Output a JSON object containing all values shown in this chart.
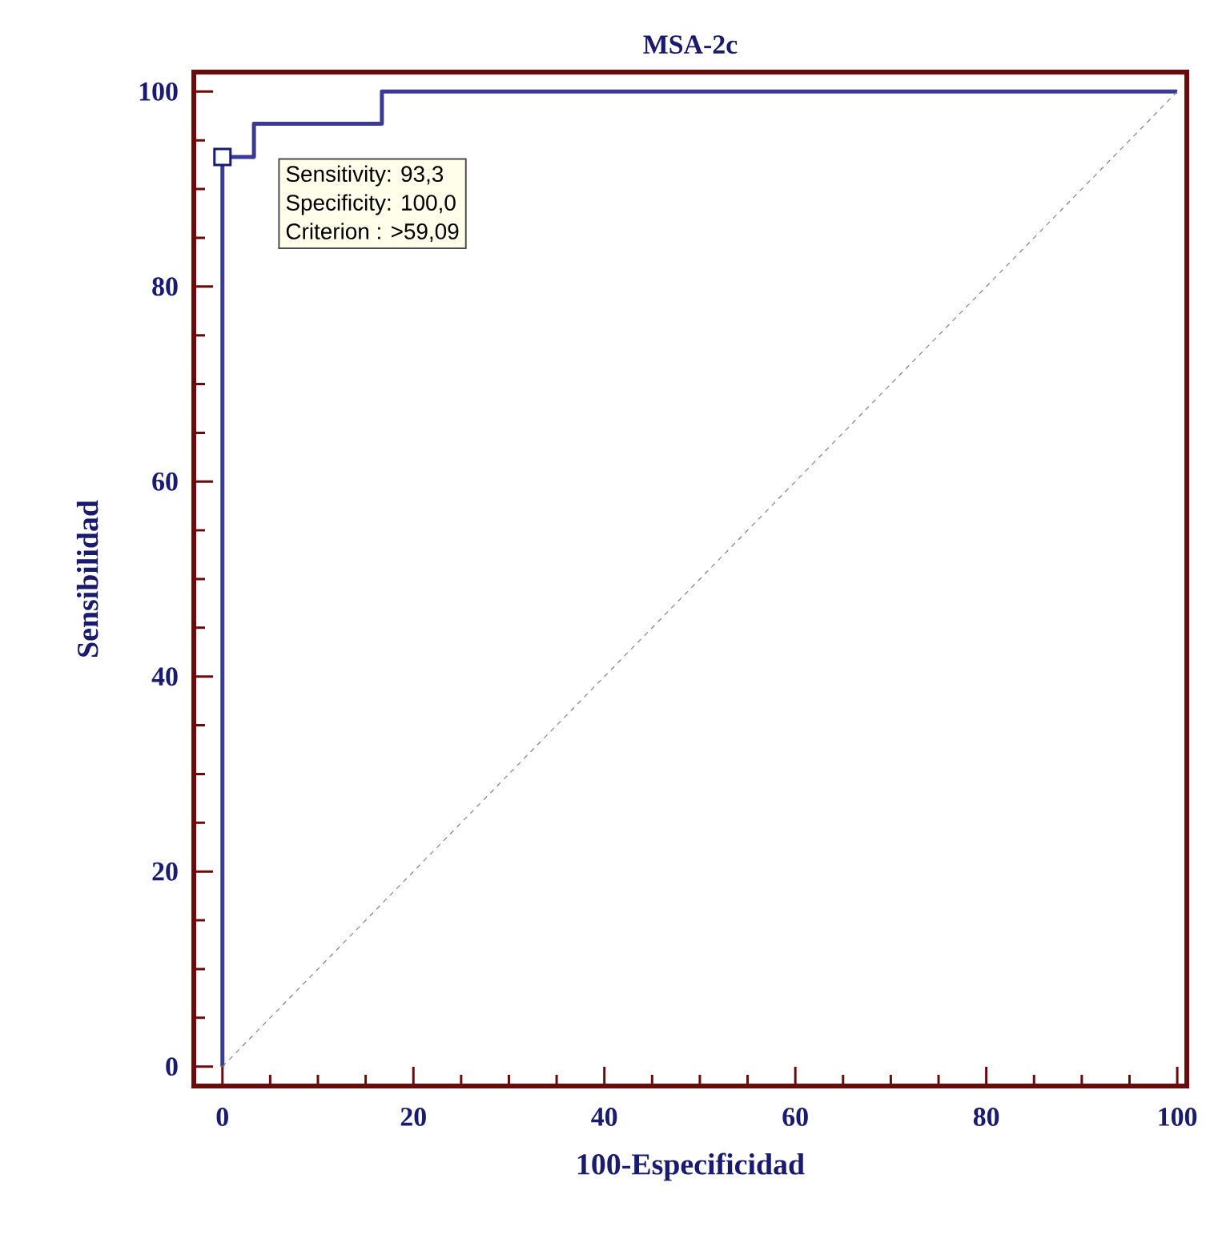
{
  "chart_data": {
    "type": "line",
    "title": "MSA-2c",
    "xlabel": "100-Especificidad",
    "ylabel": "Sensibilidad",
    "xlim": [
      -3,
      101
    ],
    "ylim": [
      -2,
      102
    ],
    "xticks": [
      0,
      20,
      40,
      60,
      80,
      100
    ],
    "yticks": [
      0,
      20,
      40,
      60,
      80,
      100
    ],
    "grid": false,
    "series": [
      {
        "color": "#3b3b96",
        "line_style": "solid",
        "marker": "none",
        "x": [
          0,
          0,
          3.3,
          3.3,
          16.7,
          16.7,
          100
        ],
        "values": [
          0,
          93.3,
          93.3,
          96.7,
          96.7,
          100,
          100
        ]
      },
      {
        "type": "line",
        "color": "#808080",
        "line_style": "dashed",
        "marker": "none",
        "x": [
          0,
          100
        ],
        "values": [
          0,
          100
        ]
      },
      {
        "type": "scatter",
        "color": "#1a1a6e",
        "marker": "square",
        "x": [
          0
        ],
        "values": [
          93.3
        ]
      }
    ],
    "annotations": [
      "Sensitivity: 93,3",
      "Specificity: 100,0",
      "Criterion : >59,09"
    ]
  }
}
